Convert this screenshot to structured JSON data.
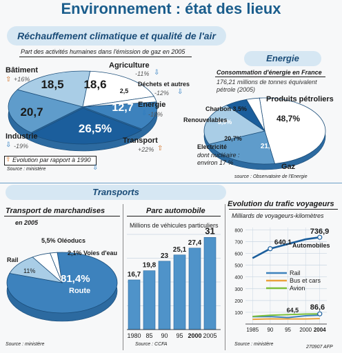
{
  "title": "Environnement : état des lieux",
  "climat": {
    "heading": "Réchauffement climatique et qualité de l'air",
    "subtitle": "Part des activités humaines dans l'émission de gaz en 2005",
    "note": "Evolution par rapport à 1990",
    "source": "Source : ministère",
    "labels": {
      "batiment": "Bâtiment",
      "batiment_evo": "+16%",
      "agriculture": "Agriculture",
      "agriculture_evo": "-11%",
      "dechets": "Déchets et autres",
      "dechets_evo": "-12%",
      "energie": "Energie",
      "energie_evo": "-10%",
      "industrie": "Industrie",
      "industrie_evo": "-19%",
      "transport": "Transport",
      "transport_evo": "+22%"
    },
    "values_text": {
      "batiment": "18,5",
      "agriculture": "18,6",
      "dechets": "2,5",
      "energie": "12,7",
      "transport": "26,5%",
      "industrie": "20,7"
    }
  },
  "energie": {
    "heading": "Energie",
    "subtitle": "Consommation d'énergie en France",
    "detail": "176,21 millions de tonnes équivalent pétrole (2005)",
    "source": "source : Observatoire de l'Energie",
    "labels": {
      "petrole": "Produits pétroliers",
      "charbon": "Charbon 3,5%",
      "renouvelables": "Renouvelables",
      "electricite": "Electricité",
      "nucleaire": "dont nucléaire :",
      "nucleaire2": "environ 17 %",
      "gaz": "Gaz"
    },
    "values_text": {
      "petrole": "48,7%",
      "renouvelables": "5,9%",
      "electricite": "20,7%",
      "gaz": "21,1%"
    }
  },
  "transports": {
    "heading": "Transports",
    "marchandises": {
      "title": "Transport de marchandises",
      "year": "en 2005",
      "labels": {
        "oleoducs": "5,5% Oléoducs",
        "voies": "2,1% Voies d'eau",
        "rail": "Rail",
        "rail_val": "11%",
        "route_val": "81,4%",
        "route": "Route"
      },
      "source": "Source : ministère"
    },
    "parc": {
      "title": "Parc automobile",
      "subtitle": "Millions de véhicules particuliers",
      "source": "Source : CCFA"
    },
    "trafic": {
      "title": "Evolution du trafic voyageurs",
      "subtitle": "Milliards de voyageurs-kilomètres",
      "auto_label": "Automobiles",
      "legend": [
        "Rail",
        "Bus et cars",
        "Avion"
      ],
      "source": "Source : ministère",
      "credit": "270907 AFP"
    }
  },
  "chart_data": [
    {
      "type": "pie",
      "title": "Part des activités humaines dans l'émission de gaz en 2005",
      "categories": [
        "Transport",
        "Industrie",
        "Bâtiment",
        "Agriculture",
        "Déchets et autres",
        "Energie"
      ],
      "values": [
        26.5,
        20.7,
        18.5,
        18.6,
        2.5,
        12.7
      ],
      "evolution_1990": [
        "+22%",
        "-19%",
        "+16%",
        "-11%",
        "-12%",
        "-10%"
      ],
      "colors": [
        "#1b5e9c",
        "#5f9ccb",
        "#a9cde6",
        "#ffffff",
        "#ffffff",
        "#3d82bd"
      ]
    },
    {
      "type": "pie",
      "title": "Consommation d'énergie en France",
      "categories": [
        "Produits pétroliers",
        "Gaz",
        "Electricité",
        "Renouvelables",
        "Charbon"
      ],
      "values": [
        48.7,
        21.1,
        20.7,
        5.9,
        3.5
      ],
      "colors": [
        "#ffffff",
        "#5f9ccb",
        "#a9cde6",
        "#1b5e9c",
        "#ffffff"
      ]
    },
    {
      "type": "pie",
      "title": "Transport de marchandises",
      "categories": [
        "Route",
        "Rail",
        "Oléoducs",
        "Voies d'eau"
      ],
      "values": [
        81.4,
        11,
        5.5,
        2.1
      ],
      "colors": [
        "#3d82bd",
        "#a9cde6",
        "#ffffff",
        "#ffffff"
      ]
    },
    {
      "type": "bar",
      "title": "Parc automobile",
      "ylabel": "Millions de véhicules particuliers",
      "categories": [
        "1980",
        "85",
        "90",
        "95",
        "2000",
        "2005"
      ],
      "values": [
        16.7,
        19.8,
        23,
        25.1,
        27.4,
        31
      ],
      "value_labels": [
        "16,7",
        "19,8",
        "23",
        "25,1",
        "27,4",
        "31"
      ],
      "ylim": [
        0,
        32
      ]
    },
    {
      "type": "line",
      "title": "Evolution du trafic voyageurs",
      "ylabel": "Milliards de voyageurs-kilomètres",
      "x": [
        1985,
        1990,
        1995,
        2000,
        2004
      ],
      "xticks": [
        "1985",
        "90",
        "95",
        "2000",
        "2004"
      ],
      "yticks": [
        100,
        200,
        300,
        400,
        500,
        600,
        700,
        800
      ],
      "ylim": [
        0,
        820
      ],
      "series": [
        {
          "name": "Automobiles",
          "values": [
            560,
            640.1,
            680,
            720,
            736.9
          ],
          "color": "#1b5e9c"
        },
        {
          "name": "Rail",
          "values": [
            62,
            64,
            55,
            70,
            75
          ],
          "color": "#3d82bd"
        },
        {
          "name": "Bus et cars",
          "values": [
            40,
            44,
            43,
            43,
            46
          ],
          "color": "#e9a23b"
        },
        {
          "name": "Avion",
          "values": [
            64.5,
            75,
            80,
            85,
            86.6
          ],
          "color": "#7bbf3a"
        }
      ],
      "annotations": [
        "640,1",
        "736,9",
        "64,5",
        "86,6"
      ]
    }
  ]
}
